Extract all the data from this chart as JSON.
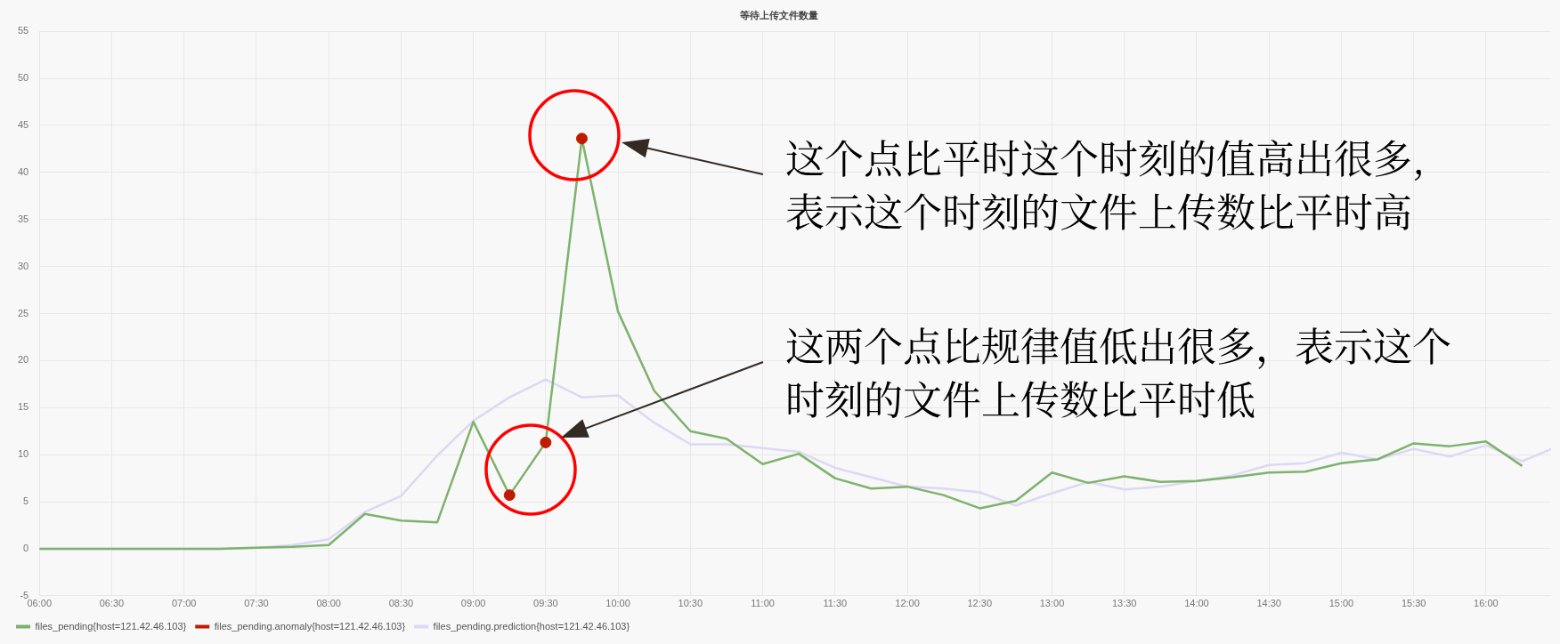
{
  "chart_data": {
    "type": "line",
    "title": "等待上传文件数量",
    "x": [
      6,
      6.25,
      6.5,
      6.75,
      7,
      7.25,
      7.5,
      7.75,
      8,
      8.25,
      8.5,
      8.75,
      9,
      9.25,
      9.5,
      9.75,
      10,
      10.25,
      10.5,
      10.75,
      11,
      11.25,
      11.5,
      11.75,
      12,
      12.25,
      12.5,
      12.75,
      13,
      13.25,
      13.5,
      13.75,
      14,
      14.25,
      14.5,
      14.75,
      15,
      15.25,
      15.5,
      15.75,
      16,
      16.25
    ],
    "series": [
      {
        "name": "files_pending{host=121.42.46.103}",
        "color": "#7eb26d",
        "values": [
          0,
          0,
          0,
          0,
          0,
          0,
          0.1,
          0.2,
          0.4,
          3.7,
          3.0,
          2.8,
          13.5,
          5.7,
          11.3,
          43.6,
          25.2,
          16.8,
          12.5,
          11.7,
          9.0,
          10.1,
          7.5,
          6.4,
          6.6,
          5.7,
          4.3,
          5.1,
          8.1,
          7.0,
          7.7,
          7.1,
          7.2,
          7.6,
          8.1,
          8.2,
          9.1,
          9.5,
          11.2,
          10.9,
          11.4,
          8.8
        ]
      },
      {
        "name": "files_pending.anomaly{host=121.42.46.103}",
        "color": "#bf1b00",
        "type": "scatter",
        "marker": "circle",
        "x": [
          9.25,
          9.5,
          9.75
        ],
        "values": [
          5.7,
          11.3,
          43.6
        ]
      },
      {
        "name": "files_pending.prediction{host=121.42.46.103}",
        "color": "#dcd8f5",
        "x": [
          6,
          6.25,
          6.5,
          6.75,
          7,
          7.25,
          7.5,
          7.75,
          8,
          8.25,
          8.5,
          8.75,
          9,
          9.25,
          9.5,
          9.75,
          10,
          10.25,
          10.5,
          10.75,
          11,
          11.25,
          11.5,
          11.75,
          12,
          12.25,
          12.5,
          12.75,
          13,
          13.25,
          13.5,
          13.75,
          14,
          14.25,
          14.5,
          14.75,
          15,
          15.25,
          15.5,
          15.75,
          16,
          16.25,
          16.45
        ],
        "values": [
          0,
          0,
          0,
          0,
          0,
          0,
          0.1,
          0.4,
          1.0,
          3.9,
          5.6,
          9.9,
          13.6,
          16.1,
          18.0,
          16.1,
          16.3,
          13.4,
          11.1,
          11.1,
          10.7,
          10.3,
          8.6,
          7.6,
          6.6,
          6.4,
          6.0,
          4.6,
          5.9,
          7.1,
          6.3,
          6.6,
          7.2,
          7.8,
          8.9,
          9.1,
          10.2,
          9.5,
          10.6,
          9.8,
          11.0,
          9.3,
          10.6
        ]
      }
    ],
    "xlim": [
      6,
      16.45
    ],
    "xticks": [
      {
        "value": 6,
        "label": "06:00"
      },
      {
        "value": 6.5,
        "label": "06:30"
      },
      {
        "value": 7,
        "label": "07:00"
      },
      {
        "value": 7.5,
        "label": "07:30"
      },
      {
        "value": 8,
        "label": "08:00"
      },
      {
        "value": 8.5,
        "label": "08:30"
      },
      {
        "value": 9,
        "label": "09:00"
      },
      {
        "value": 9.5,
        "label": "09:30"
      },
      {
        "value": 10,
        "label": "10:00"
      },
      {
        "value": 10.5,
        "label": "10:30"
      },
      {
        "value": 11,
        "label": "11:00"
      },
      {
        "value": 11.5,
        "label": "11:30"
      },
      {
        "value": 12,
        "label": "12:00"
      },
      {
        "value": 12.5,
        "label": "12:30"
      },
      {
        "value": 13,
        "label": "13:00"
      },
      {
        "value": 13.5,
        "label": "13:30"
      },
      {
        "value": 14,
        "label": "14:00"
      },
      {
        "value": 14.5,
        "label": "14:30"
      },
      {
        "value": 15,
        "label": "15:00"
      },
      {
        "value": 15.5,
        "label": "15:30"
      },
      {
        "value": 16,
        "label": "16:00"
      }
    ],
    "ylim": [
      -5,
      55
    ],
    "yticks": [
      -5,
      0,
      5,
      10,
      15,
      20,
      25,
      30,
      35,
      40,
      45,
      50,
      55
    ],
    "grid": true,
    "legend": "bottom left",
    "line_style": "solid",
    "annotations": [
      "这个点比平时这个时刻的值高出很多,表示这个时刻的文件上传数比平时高",
      "这两个点比规律值低出很多，表示这个时刻的文件上传数比平时低"
    ]
  }
}
